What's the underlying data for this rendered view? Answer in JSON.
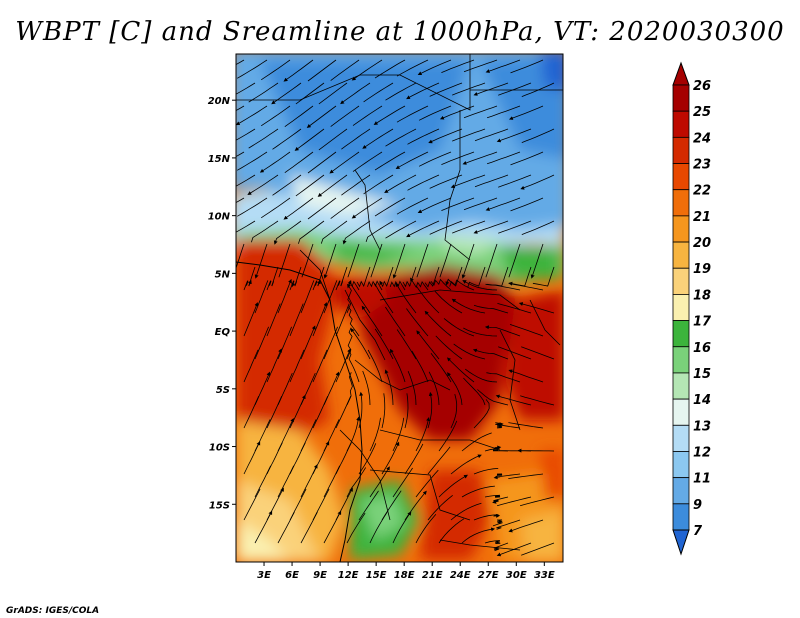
{
  "title": "WBPT [C] and Sreamline at 1000hPa, VT: 2020030300",
  "credit": "GrADS: IGES/COLA",
  "map": {
    "lon_range": [
      0,
      35
    ],
    "lat_range": [
      -20,
      24
    ],
    "lon_ticks": [
      {
        "value": 3,
        "label": "3E"
      },
      {
        "value": 6,
        "label": "6E"
      },
      {
        "value": 9,
        "label": "9E"
      },
      {
        "value": 12,
        "label": "12E"
      },
      {
        "value": 15,
        "label": "15E"
      },
      {
        "value": 18,
        "label": "18E"
      },
      {
        "value": 21,
        "label": "21E"
      },
      {
        "value": 24,
        "label": "24E"
      },
      {
        "value": 27,
        "label": "27E"
      },
      {
        "value": 30,
        "label": "30E"
      },
      {
        "value": 33,
        "label": "33E"
      }
    ],
    "lat_ticks": [
      {
        "value": 20,
        "label": "20N"
      },
      {
        "value": 15,
        "label": "15N"
      },
      {
        "value": 10,
        "label": "10N"
      },
      {
        "value": 5,
        "label": "5N"
      },
      {
        "value": 0,
        "label": "EQ"
      },
      {
        "value": -5,
        "label": "5S"
      },
      {
        "value": -10,
        "label": "10S"
      },
      {
        "value": -15,
        "label": "15S"
      }
    ]
  },
  "colorbar": {
    "levels": [
      {
        "label": "26",
        "color": "#a50000"
      },
      {
        "label": "25",
        "color": "#be0a00"
      },
      {
        "label": "24",
        "color": "#d42a00"
      },
      {
        "label": "23",
        "color": "#e84800"
      },
      {
        "label": "22",
        "color": "#f06e0a"
      },
      {
        "label": "21",
        "color": "#f5961e"
      },
      {
        "label": "20",
        "color": "#f7b440"
      },
      {
        "label": "19",
        "color": "#fad27a"
      },
      {
        "label": "18",
        "color": "#faf0b0"
      },
      {
        "label": "17",
        "color": "#3cb43c"
      },
      {
        "label": "16",
        "color": "#7ad27a"
      },
      {
        "label": "15",
        "color": "#b4e6b4"
      },
      {
        "label": "14",
        "color": "#e6f5f0"
      },
      {
        "label": "13",
        "color": "#b4dcf5"
      },
      {
        "label": "12",
        "color": "#8cc8f0"
      },
      {
        "label": "11",
        "color": "#64aae6"
      },
      {
        "label": "9",
        "color": "#3c8cdc"
      },
      {
        "label": "7",
        "color": "#2064d2"
      }
    ],
    "over_color": "#a50000",
    "under_color": "#2064d2"
  }
}
